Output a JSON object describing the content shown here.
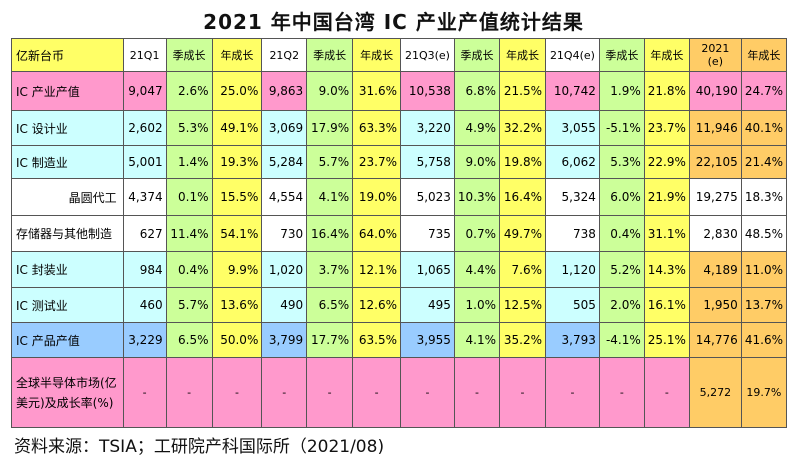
{
  "title": "2021 年中国台湾 IC 产业产值统计结果",
  "source": "资料来源：TSIA；工研院产科国际所（2021/08)",
  "header": {
    "unit": "亿新台币",
    "cols": [
      "21Q1",
      "季成长",
      "年成长",
      "21Q2",
      "季成长",
      "年成长",
      "21Q3(e)",
      "季成长",
      "年成长",
      "21Q4(e)",
      "季成长",
      "年成长",
      "2021\n(e)",
      "年成长"
    ]
  },
  "rows": [
    {
      "label": "IC 产业产值",
      "values": [
        "9,047",
        "2.6%",
        "25.0%",
        "9,863",
        "9.0%",
        "31.6%",
        "10,538",
        "6.8%",
        "21.5%",
        "10,742",
        "1.9%",
        "21.8%",
        "40,190",
        "24.7%"
      ]
    },
    {
      "label": "IC 设计业",
      "values": [
        "2,602",
        "5.3%",
        "49.1%",
        "3,069",
        "17.9%",
        "63.3%",
        "3,220",
        "4.9%",
        "32.2%",
        "3,055",
        "-5.1%",
        "23.7%",
        "11,946",
        "40.1%"
      ]
    },
    {
      "label": "IC 制造业",
      "values": [
        "5,001",
        "1.4%",
        "19.3%",
        "5,284",
        "5.7%",
        "23.7%",
        "5,758",
        "9.0%",
        "19.8%",
        "6,062",
        "5.3%",
        "22.9%",
        "22,105",
        "21.4%"
      ]
    },
    {
      "label": "晶圆代工",
      "values": [
        "4,374",
        "0.1%",
        "15.5%",
        "4,554",
        "4.1%",
        "19.0%",
        "5,023",
        "10.3%",
        "16.4%",
        "5,324",
        "6.0%",
        "21.9%",
        "19,275",
        "18.3%"
      ]
    },
    {
      "label": "存储器与其他制造",
      "values": [
        "627",
        "11.4%",
        "54.1%",
        "730",
        "16.4%",
        "64.0%",
        "735",
        "0.7%",
        "49.7%",
        "738",
        "0.4%",
        "31.1%",
        "2,830",
        "48.5%"
      ]
    },
    {
      "label": "IC 封装业",
      "values": [
        "984",
        "0.4%",
        "9.9%",
        "1,020",
        "3.7%",
        "12.1%",
        "1,065",
        "4.4%",
        "7.6%",
        "1,120",
        "5.2%",
        "14.3%",
        "4,189",
        "11.0%"
      ]
    },
    {
      "label": "IC 测试业",
      "values": [
        "460",
        "5.7%",
        "13.6%",
        "490",
        "6.5%",
        "12.6%",
        "495",
        "1.0%",
        "12.5%",
        "505",
        "2.0%",
        "16.1%",
        "1,950",
        "13.7%"
      ]
    },
    {
      "label": "IC 产品产值",
      "values": [
        "3,229",
        "6.5%",
        "50.0%",
        "3,799",
        "17.7%",
        "63.5%",
        "3,955",
        "4.1%",
        "35.2%",
        "3,793",
        "-4.1%",
        "25.1%",
        "14,776",
        "41.6%"
      ]
    },
    {
      "label": "全球半导体市场(亿美元)及成长率(%)",
      "values": [
        "-",
        "-",
        "-",
        "-",
        "-",
        "-",
        "-",
        "-",
        "-",
        "-",
        "-",
        "-",
        "5,272",
        "19.7%"
      ]
    }
  ],
  "colors": {
    "green": "#ccff99",
    "yellow": "#ffff66",
    "pink": "#ff99cc",
    "blue": "#99ccff",
    "orange": "#ffcc66",
    "lightcyan": "#ccffff",
    "white": "#ffffff"
  }
}
